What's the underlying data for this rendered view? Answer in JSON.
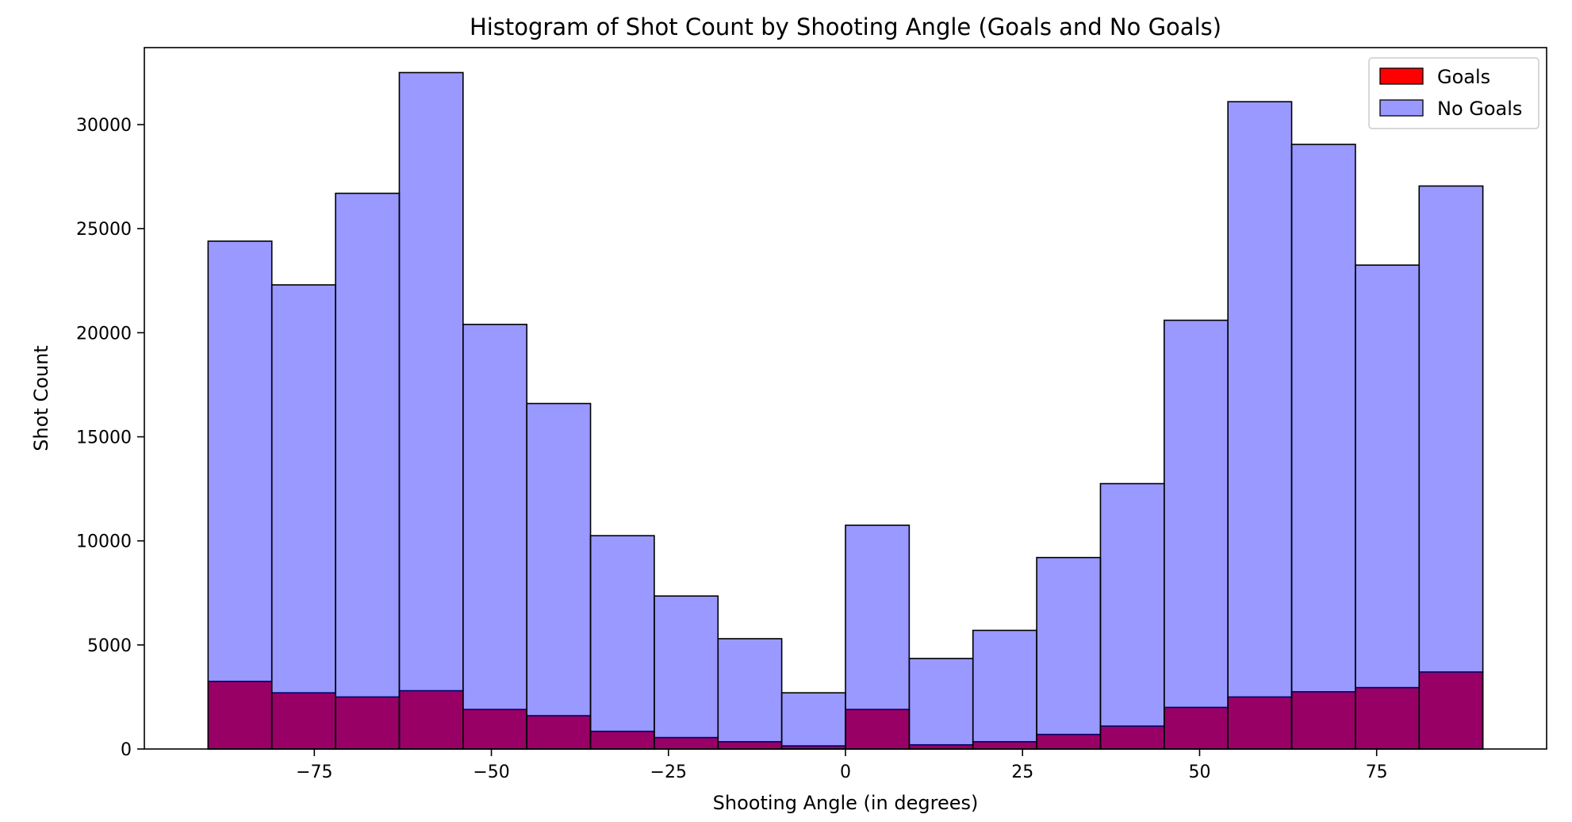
{
  "chart_data": {
    "type": "histogram",
    "title": "Histogram of Shot Count by Shooting Angle (Goals and No Goals)",
    "xlabel": "Shooting Angle (in degrees)",
    "ylabel": "Shot Count",
    "xlim": [
      -99,
      99
    ],
    "ylim": [
      0,
      33700
    ],
    "x_ticks": [
      -75,
      -50,
      -25,
      0,
      25,
      50,
      75
    ],
    "x_tick_labels": [
      "−75",
      "−50",
      "−25",
      "0",
      "25",
      "50",
      "75"
    ],
    "y_ticks": [
      0,
      5000,
      10000,
      15000,
      20000,
      25000,
      30000
    ],
    "y_tick_labels": [
      "0",
      "5000",
      "10000",
      "15000",
      "20000",
      "25000",
      "30000"
    ],
    "bin_edges": [
      -90,
      -81,
      -72,
      -63,
      -54,
      -45,
      -36,
      -27,
      -18,
      -9,
      0,
      9,
      18,
      27,
      36,
      45,
      54,
      63,
      72,
      81,
      90
    ],
    "series": [
      {
        "name": "Goals",
        "color": "#ff0000",
        "opacity": 1.0,
        "values": [
          3250,
          2700,
          2500,
          2800,
          1900,
          1600,
          850,
          550,
          350,
          150,
          1900,
          200,
          350,
          700,
          1100,
          2000,
          2500,
          2750,
          2950,
          3700
        ]
      },
      {
        "name": "No Goals",
        "color": "#0000ff",
        "opacity": 0.4,
        "values": [
          24400,
          22300,
          26700,
          32500,
          20400,
          16600,
          10250,
          7350,
          5300,
          2700,
          10750,
          4350,
          5700,
          9200,
          12750,
          20600,
          31100,
          29050,
          23250,
          27050
        ]
      }
    ],
    "grid": false,
    "legend_position": "upper right"
  }
}
